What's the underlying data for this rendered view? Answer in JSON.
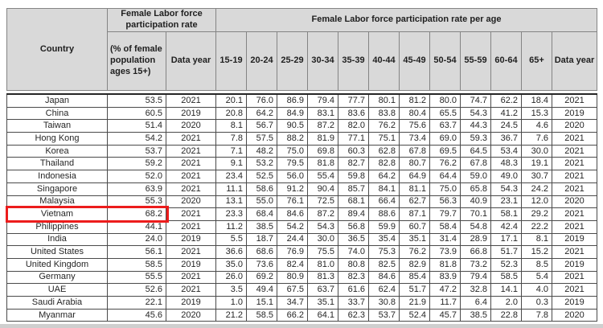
{
  "table": {
    "header": {
      "country": "Country",
      "group_rate": "Female Labor force participation rate",
      "group_age": "Female Labor force participation rate per age",
      "rate_label": "(% of female population ages 15+)",
      "data_year": "Data year",
      "age_columns": [
        "15-19",
        "20-24",
        "25-29",
        "30-34",
        "35-39",
        "40-44",
        "45-49",
        "50-54",
        "55-59",
        "60-64",
        "65+"
      ],
      "data_year2": "Data year"
    },
    "rows": [
      {
        "country": "Japan",
        "rate": "53.5",
        "year": "2021",
        "ages": [
          "20.1",
          "76.0",
          "86.9",
          "79.4",
          "77.7",
          "80.1",
          "81.2",
          "80.0",
          "74.7",
          "62.2",
          "18.4"
        ],
        "age_year": "2021"
      },
      {
        "country": "China",
        "rate": "60.5",
        "year": "2019",
        "ages": [
          "20.8",
          "64.2",
          "84.9",
          "83.1",
          "83.6",
          "83.8",
          "80.4",
          "65.5",
          "54.3",
          "41.2",
          "15.3"
        ],
        "age_year": "2019"
      },
      {
        "country": "Taiwan",
        "rate": "51.4",
        "year": "2020",
        "ages": [
          "8.1",
          "56.7",
          "90.5",
          "87.2",
          "82.0",
          "76.2",
          "75.6",
          "63.7",
          "44.3",
          "24.5",
          "4.6"
        ],
        "age_year": "2020"
      },
      {
        "country": "Hong Kong",
        "rate": "54.2",
        "year": "2021",
        "ages": [
          "7.8",
          "57.5",
          "88.2",
          "81.9",
          "77.1",
          "75.1",
          "73.4",
          "69.0",
          "59.3",
          "36.7",
          "7.6"
        ],
        "age_year": "2021"
      },
      {
        "country": "Korea",
        "rate": "53.7",
        "year": "2021",
        "ages": [
          "7.1",
          "48.2",
          "75.0",
          "69.8",
          "60.3",
          "62.8",
          "67.8",
          "69.5",
          "64.5",
          "53.4",
          "30.0"
        ],
        "age_year": "2021"
      },
      {
        "country": "Thailand",
        "rate": "59.2",
        "year": "2021",
        "ages": [
          "9.1",
          "53.2",
          "79.5",
          "81.8",
          "82.7",
          "82.8",
          "80.7",
          "76.2",
          "67.8",
          "48.3",
          "19.1"
        ],
        "age_year": "2021"
      },
      {
        "country": "Indonesia",
        "rate": "52.0",
        "year": "2021",
        "ages": [
          "23.4",
          "52.5",
          "56.0",
          "55.4",
          "59.8",
          "64.2",
          "64.9",
          "64.4",
          "59.0",
          "49.0",
          "30.7"
        ],
        "age_year": "2021"
      },
      {
        "country": "Singapore",
        "rate": "63.9",
        "year": "2021",
        "ages": [
          "11.1",
          "58.6",
          "91.2",
          "90.4",
          "85.7",
          "84.1",
          "81.1",
          "75.0",
          "65.8",
          "54.3",
          "24.2"
        ],
        "age_year": "2021"
      },
      {
        "country": "Malaysia",
        "rate": "55.3",
        "year": "2020",
        "ages": [
          "13.1",
          "55.0",
          "76.1",
          "72.5",
          "68.1",
          "66.4",
          "62.7",
          "56.3",
          "40.9",
          "23.1",
          "12.0"
        ],
        "age_year": "2020"
      },
      {
        "country": "Vietnam",
        "rate": "68.2",
        "year": "2021",
        "ages": [
          "23.3",
          "68.4",
          "84.6",
          "87.2",
          "89.4",
          "88.6",
          "87.1",
          "79.7",
          "70.1",
          "58.1",
          "29.2"
        ],
        "age_year": "2021"
      },
      {
        "country": "Philippines",
        "rate": "44.1",
        "year": "2021",
        "ages": [
          "11.2",
          "38.5",
          "54.2",
          "54.3",
          "56.8",
          "59.9",
          "60.7",
          "58.4",
          "54.8",
          "42.4",
          "22.2"
        ],
        "age_year": "2021"
      },
      {
        "country": "India",
        "rate": "24.0",
        "year": "2019",
        "ages": [
          "5.5",
          "18.7",
          "24.4",
          "30.0",
          "36.5",
          "35.4",
          "35.1",
          "31.4",
          "28.9",
          "17.1",
          "8.1"
        ],
        "age_year": "2019"
      },
      {
        "country": "United States",
        "rate": "56.1",
        "year": "2021",
        "ages": [
          "36.6",
          "68.6",
          "76.9",
          "75.5",
          "74.0",
          "75.3",
          "76.2",
          "73.9",
          "66.8",
          "51.7",
          "15.2"
        ],
        "age_year": "2021"
      },
      {
        "country": "United Kingdom",
        "rate": "58.5",
        "year": "2019",
        "ages": [
          "35.0",
          "73.6",
          "82.4",
          "81.0",
          "80.8",
          "82.5",
          "82.9",
          "81.8",
          "73.2",
          "52.3",
          "8.5"
        ],
        "age_year": "2019"
      },
      {
        "country": "Germany",
        "rate": "55.5",
        "year": "2021",
        "ages": [
          "26.0",
          "69.2",
          "80.9",
          "81.3",
          "82.3",
          "84.6",
          "85.4",
          "83.9",
          "79.4",
          "58.5",
          "5.4"
        ],
        "age_year": "2021"
      },
      {
        "country": "UAE",
        "rate": "52.6",
        "year": "2021",
        "ages": [
          "3.5",
          "49.4",
          "67.5",
          "63.7",
          "61.6",
          "62.4",
          "51.7",
          "47.2",
          "32.8",
          "14.1",
          "4.0"
        ],
        "age_year": "2021"
      },
      {
        "country": "Saudi Arabia",
        "rate": "22.1",
        "year": "2019",
        "ages": [
          "1.0",
          "15.1",
          "34.7",
          "35.1",
          "33.7",
          "30.8",
          "21.9",
          "11.7",
          "6.4",
          "2.0",
          "0.3"
        ],
        "age_year": "2019"
      },
      {
        "country": "Myanmar",
        "rate": "45.6",
        "year": "2020",
        "ages": [
          "21.2",
          "58.5",
          "66.2",
          "64.1",
          "62.3",
          "53.7",
          "52.4",
          "45.7",
          "38.5",
          "22.8",
          "7.8"
        ],
        "age_year": "2020"
      }
    ],
    "highlight": {
      "country": "Vietnam",
      "color": "#ec1c1c"
    }
  }
}
